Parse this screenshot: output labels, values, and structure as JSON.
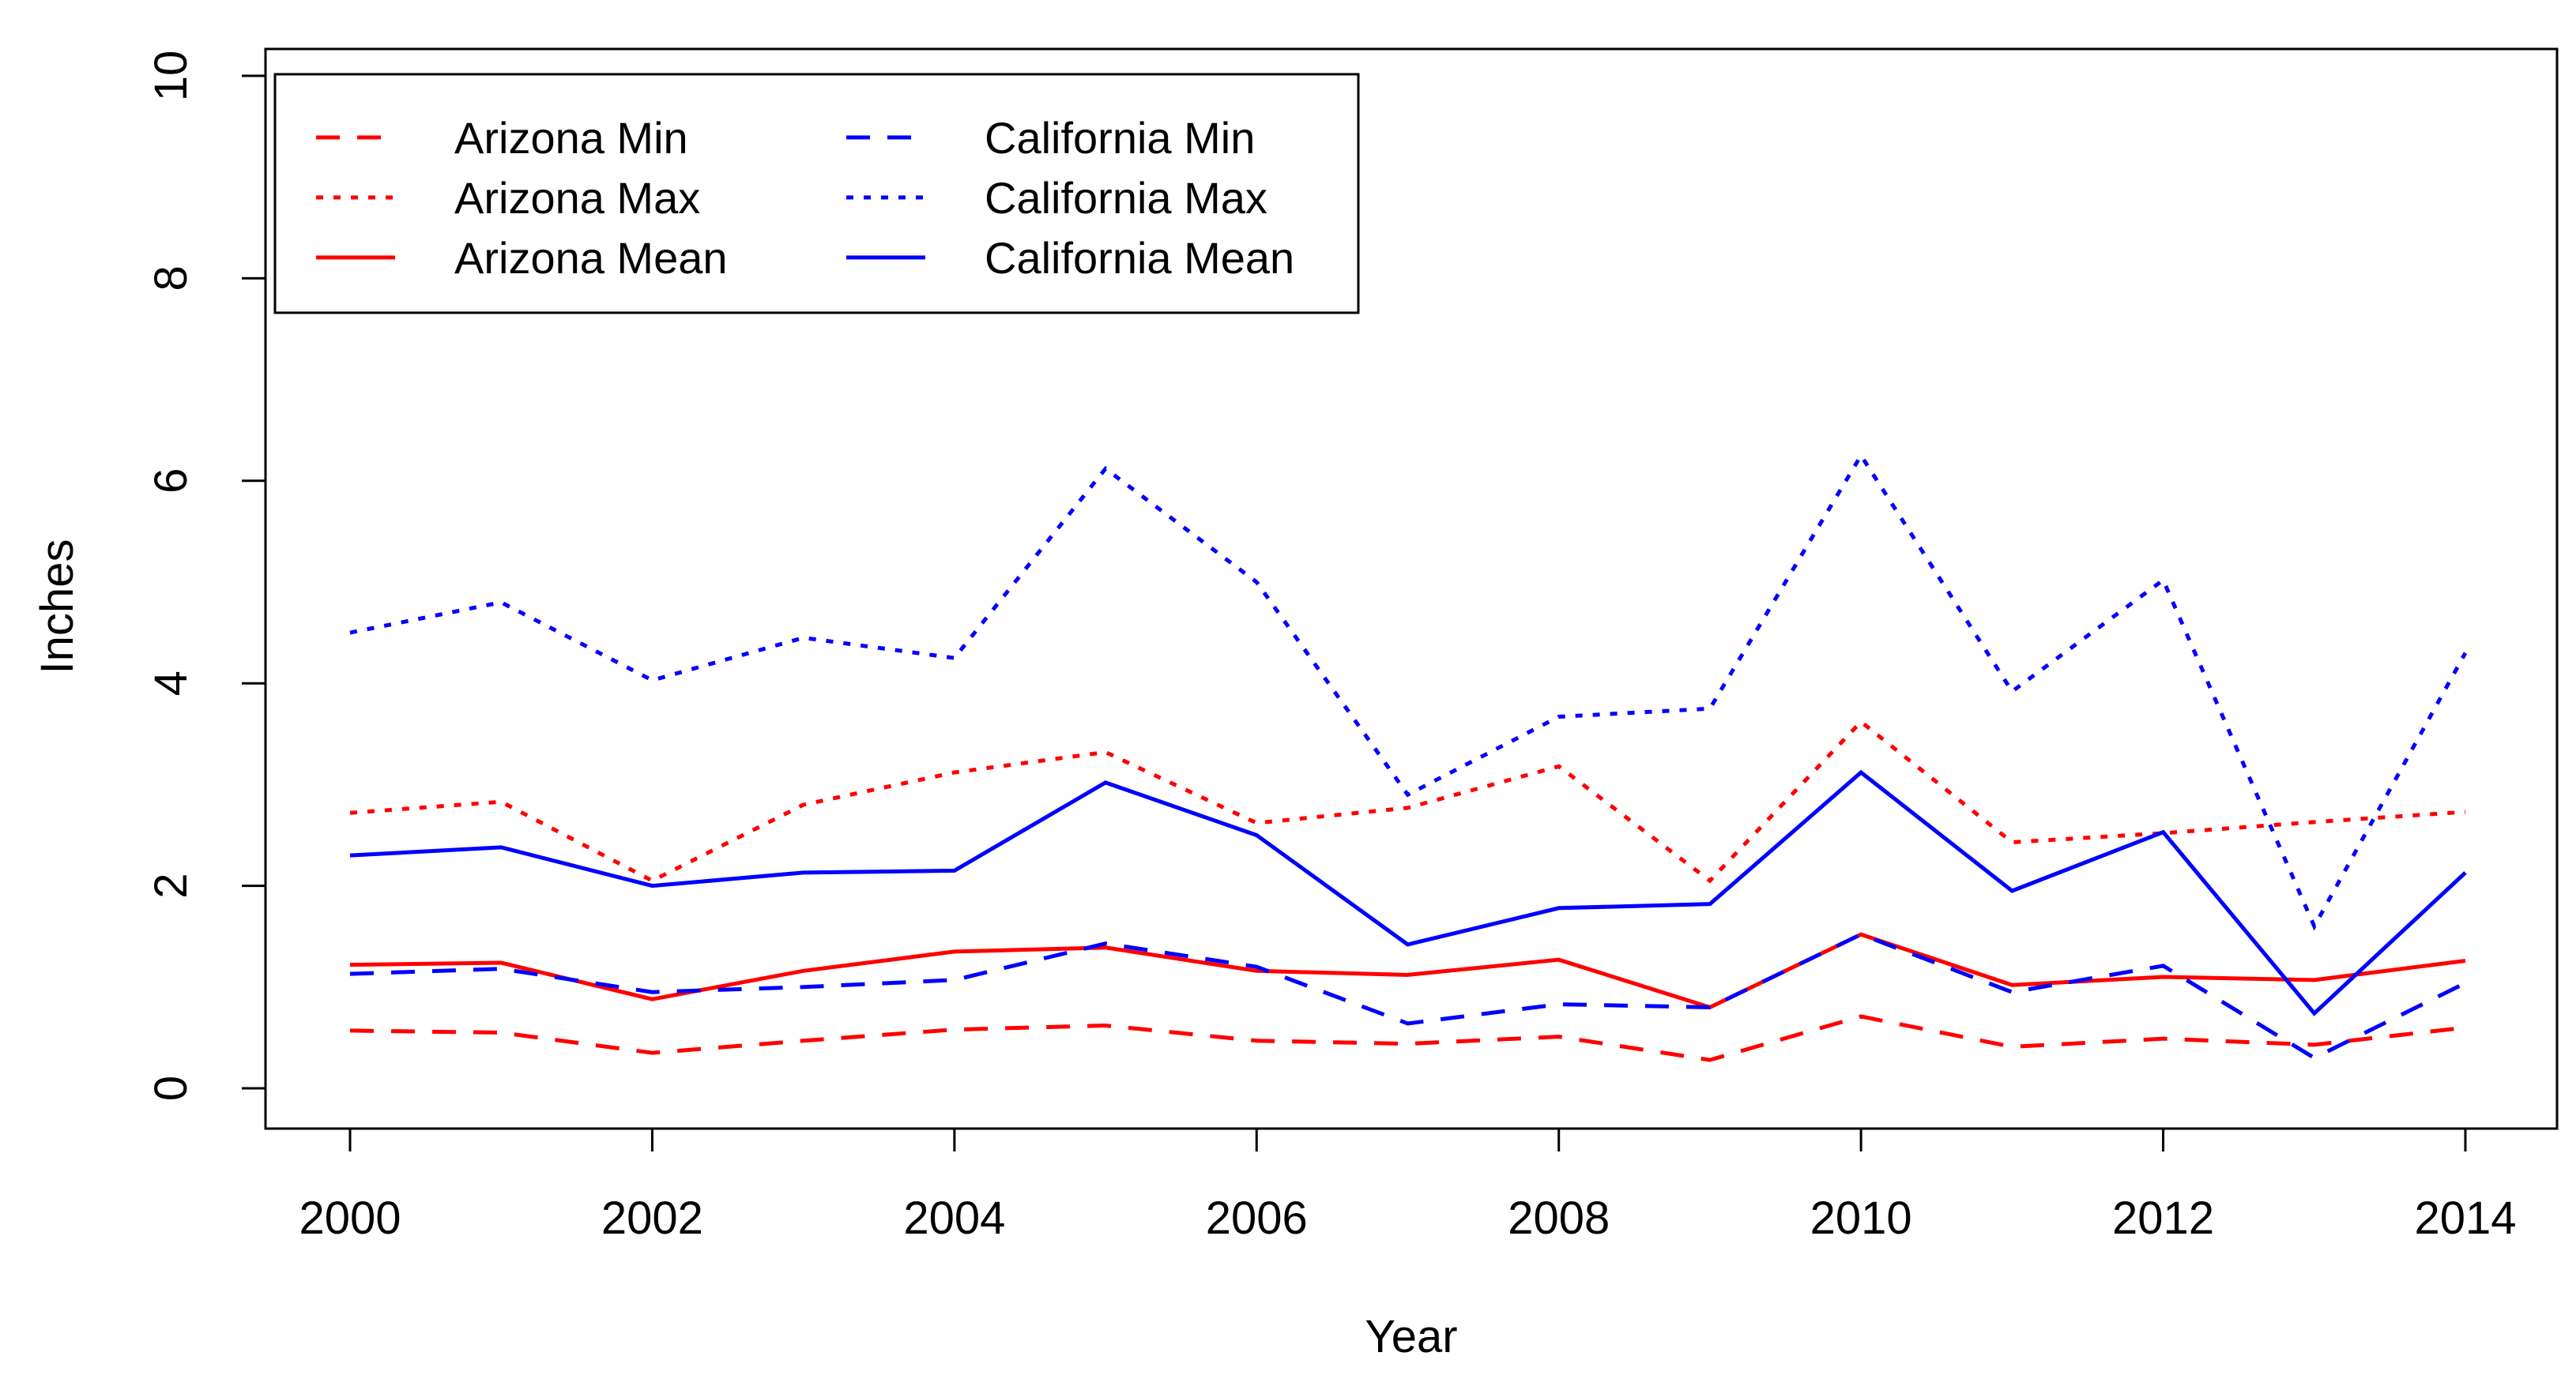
{
  "chart_data": {
    "type": "line",
    "title": "",
    "xlabel": "Year",
    "ylabel": "Inches",
    "xlim": [
      2000,
      2014
    ],
    "ylim": [
      0,
      10
    ],
    "x_ticks": [
      2000,
      2002,
      2004,
      2006,
      2008,
      2010,
      2012,
      2014
    ],
    "y_ticks": [
      0,
      2,
      4,
      6,
      8,
      10
    ],
    "grid": false,
    "legend_position": "top-left",
    "x": [
      2000,
      2001,
      2002,
      2003,
      2004,
      2005,
      2006,
      2007,
      2008,
      2009,
      2010,
      2011,
      2012,
      2013,
      2014
    ],
    "series": [
      {
        "name": "Arizona Min",
        "color": "#ff0000",
        "style": "dashed",
        "values": [
          0.57,
          0.55,
          0.35,
          0.47,
          0.58,
          0.62,
          0.47,
          0.44,
          0.51,
          0.28,
          0.71,
          0.41,
          0.49,
          0.43,
          0.6
        ]
      },
      {
        "name": "Arizona Max",
        "color": "#ff0000",
        "style": "dotted",
        "values": [
          2.72,
          2.83,
          2.05,
          2.8,
          3.12,
          3.32,
          2.62,
          2.77,
          3.18,
          2.05,
          3.62,
          2.43,
          2.52,
          2.63,
          2.73
        ]
      },
      {
        "name": "Arizona Mean",
        "color": "#ff0000",
        "style": "solid",
        "values": [
          1.22,
          1.24,
          0.88,
          1.16,
          1.35,
          1.39,
          1.16,
          1.12,
          1.27,
          0.8,
          1.52,
          1.02,
          1.1,
          1.07,
          1.26
        ]
      },
      {
        "name": "California Min",
        "color": "#0000ff",
        "style": "dashed",
        "values": [
          1.13,
          1.18,
          0.95,
          1.0,
          1.07,
          1.43,
          1.2,
          0.64,
          0.83,
          0.8,
          1.52,
          0.95,
          1.21,
          0.3,
          1.04
        ]
      },
      {
        "name": "California Max",
        "color": "#0000ff",
        "style": "dotted",
        "values": [
          4.5,
          4.8,
          4.03,
          4.45,
          4.25,
          6.12,
          5.0,
          2.9,
          3.67,
          3.75,
          6.25,
          3.92,
          5.02,
          1.6,
          4.3
        ]
      },
      {
        "name": "California Mean",
        "color": "#0000ff",
        "style": "solid",
        "values": [
          2.3,
          2.38,
          2.0,
          2.13,
          2.15,
          3.02,
          2.5,
          1.42,
          1.78,
          1.82,
          3.12,
          1.95,
          2.53,
          0.74,
          2.13
        ]
      }
    ]
  }
}
